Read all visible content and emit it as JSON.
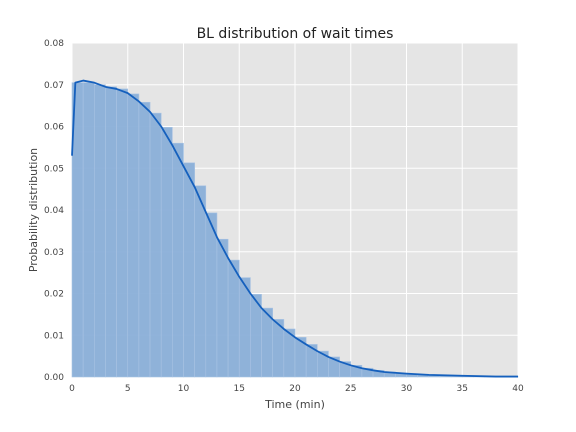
{
  "chart_data": {
    "type": "bar",
    "title": "BL distribution of wait times",
    "xlabel": "Time (min)",
    "ylabel": "Probability distribution",
    "xlim": [
      0,
      40
    ],
    "ylim": [
      0,
      0.08
    ],
    "x_ticks": [
      "0",
      "5",
      "10",
      "15",
      "20",
      "25",
      "30",
      "35",
      "40"
    ],
    "y_ticks": [
      "0.00",
      "0.01",
      "0.02",
      "0.03",
      "0.04",
      "0.05",
      "0.06",
      "0.07",
      "0.08"
    ],
    "grid": true,
    "background_color": "#e5e5e5",
    "bar_color": "#8aafd8",
    "line_color": "#1560bd",
    "histogram": {
      "bin_width": 1,
      "bin_starts": [
        0,
        1,
        2,
        3,
        4,
        5,
        6,
        7,
        8,
        9,
        10,
        11,
        12,
        13,
        14,
        15,
        16,
        17,
        18,
        19,
        20,
        21,
        22,
        23,
        24,
        25,
        26,
        27,
        28,
        29,
        30,
        31,
        32,
        33,
        34,
        35,
        36,
        37,
        38,
        39
      ],
      "values": [
        0.0705,
        0.0705,
        0.07,
        0.0695,
        0.069,
        0.0678,
        0.0658,
        0.0632,
        0.0598,
        0.056,
        0.0513,
        0.0458,
        0.0393,
        0.033,
        0.028,
        0.0238,
        0.0198,
        0.0165,
        0.0138,
        0.0115,
        0.0095,
        0.0078,
        0.0062,
        0.0048,
        0.0037,
        0.0028,
        0.0021,
        0.0016,
        0.0012,
        0.0009,
        0.0007,
        0.0005,
        0.0004,
        0.0003,
        0.0002,
        0.0002,
        0.0001,
        0.0001,
        0.0001,
        0.0001
      ]
    },
    "density": {
      "x": [
        0,
        0.3,
        1,
        2,
        3,
        4,
        5,
        6,
        7,
        8,
        9,
        10,
        11,
        12,
        13,
        14,
        15,
        16,
        17,
        18,
        19,
        20,
        21,
        22,
        23,
        24,
        25,
        26,
        27,
        28,
        30,
        32,
        35,
        38,
        40
      ],
      "y": [
        0.053,
        0.0705,
        0.071,
        0.0705,
        0.0695,
        0.069,
        0.068,
        0.066,
        0.0635,
        0.06,
        0.0555,
        0.0505,
        0.0455,
        0.0395,
        0.0335,
        0.0285,
        0.024,
        0.02,
        0.0165,
        0.0138,
        0.0115,
        0.0095,
        0.0078,
        0.0062,
        0.0048,
        0.0037,
        0.0028,
        0.0021,
        0.0016,
        0.0012,
        0.0008,
        0.0005,
        0.0003,
        0.0001,
        0.0001
      ]
    }
  }
}
